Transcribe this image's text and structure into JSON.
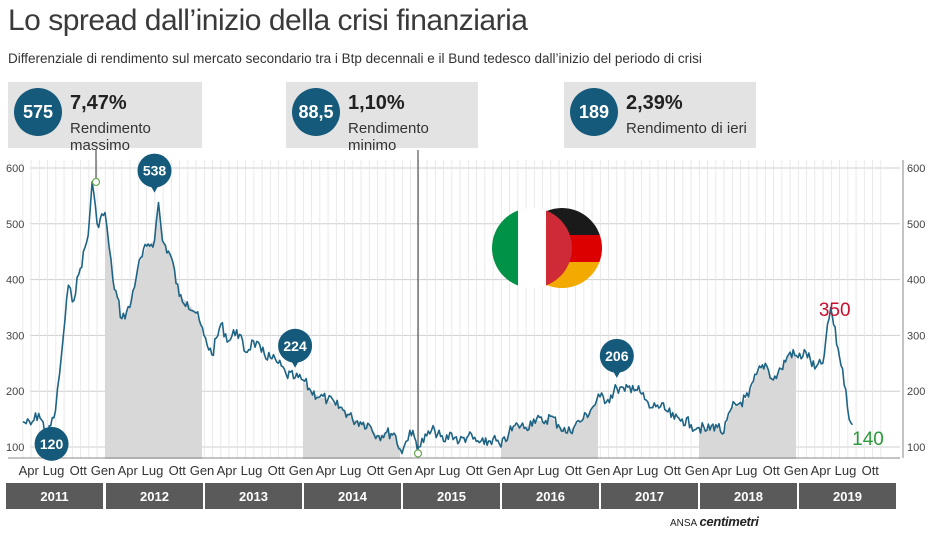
{
  "title": "Lo spread dall’inizio della crisi finanziaria",
  "subtitle": "Differenziale di rendimento sul mercato secondario tra i Btp decennali e il Bund tedesco dall’inizio del periodo di crisi",
  "callouts": [
    {
      "value": "575",
      "pct": "7,47%",
      "label": "Rendimento massimo"
    },
    {
      "value": "88,5",
      "pct": "1,10%",
      "label": "Rendimento minimo"
    },
    {
      "value": "189",
      "pct": "2,39%",
      "label": "Rendimento di ieri"
    }
  ],
  "credit": {
    "prefix": "ANSA",
    "brand": "centimetri"
  },
  "colors": {
    "line": "#1e6484",
    "badge": "#155a7a",
    "fill": "#d8d8d8",
    "year_bar": "#5a5a5a",
    "red_label": "#c8102e",
    "green_label": "#2a9a3a"
  },
  "flags_icon": "italy-germany-flags",
  "chart_data": {
    "type": "line",
    "y_ticks": [
      "600",
      "500",
      "400",
      "300",
      "200",
      "100"
    ],
    "ylim": [
      100,
      600
    ],
    "month_labels": [
      "Apr",
      "Lug",
      "Ott",
      "Gen",
      "Apr",
      "Lug",
      "Ott",
      "Gen",
      "Apr",
      "Lug",
      "Ott",
      "Gen",
      "Apr",
      "Lug",
      "Ott",
      "Gen",
      "Apr",
      "Lug",
      "Ott",
      "Gen",
      "Apr",
      "Lug",
      "Ott",
      "Gen",
      "Apr",
      "Lug",
      "Ott",
      "Gen",
      "Apr",
      "Lug",
      "Ott",
      "Gen",
      "Apr",
      "Lug",
      "Ott"
    ],
    "years": [
      "2011",
      "2012",
      "2013",
      "2014",
      "2015",
      "2016",
      "2017",
      "2018",
      "2019"
    ],
    "x_start": 2011.17,
    "x_end": 2019.85,
    "series": [
      {
        "x": [
          2011.17,
          2011.25,
          2011.33,
          2011.42,
          2011.5,
          2011.54,
          2011.58,
          2011.63,
          2011.67,
          2011.75,
          2011.83,
          2011.87,
          2011.92,
          2012.0,
          2012.04,
          2012.08,
          2012.17,
          2012.25,
          2012.33,
          2012.42,
          2012.5,
          2012.54,
          2012.58,
          2012.67,
          2012.75,
          2012.83,
          2012.92,
          2013.0,
          2013.08,
          2013.17,
          2013.25,
          2013.33,
          2013.42,
          2013.5,
          2013.58,
          2013.67,
          2013.75,
          2013.83,
          2013.92,
          2014.0,
          2014.08,
          2014.17,
          2014.25,
          2014.33,
          2014.42,
          2014.5,
          2014.58,
          2014.67,
          2014.75,
          2014.83,
          2014.92,
          2015.0,
          2015.04,
          2015.08,
          2015.17,
          2015.25,
          2015.33,
          2015.42,
          2015.5,
          2015.58,
          2015.67,
          2015.75,
          2015.83,
          2015.92,
          2016.0,
          2016.08,
          2016.17,
          2016.25,
          2016.33,
          2016.42,
          2016.5,
          2016.58,
          2016.67,
          2016.75,
          2016.83,
          2016.92,
          2017.0,
          2017.08,
          2017.17,
          2017.25,
          2017.33,
          2017.42,
          2017.5,
          2017.58,
          2017.67,
          2017.75,
          2017.83,
          2017.92,
          2018.0,
          2018.08,
          2018.17,
          2018.25,
          2018.33,
          2018.42,
          2018.5,
          2018.58,
          2018.67,
          2018.75,
          2018.83,
          2018.92,
          2019.0,
          2019.08,
          2019.17,
          2019.25,
          2019.33,
          2019.42,
          2019.45,
          2019.5,
          2019.55
        ],
        "y": [
          145,
          140,
          160,
          120,
          165,
          230,
          300,
          390,
          360,
          420,
          480,
          575,
          500,
          520,
          460,
          400,
          330,
          350,
          420,
          460,
          470,
          538,
          470,
          440,
          370,
          360,
          340,
          300,
          265,
          320,
          290,
          310,
          270,
          290,
          270,
          260,
          250,
          230,
          224,
          220,
          200,
          190,
          185,
          175,
          165,
          150,
          145,
          140,
          120,
          125,
          125,
          88.5,
          110,
          130,
          100,
          120,
          130,
          110,
          125,
          110,
          120,
          110,
          105,
          115,
          100,
          125,
          140,
          135,
          150,
          145,
          155,
          140,
          125,
          140,
          150,
          170,
          190,
          185,
          206,
          200,
          210,
          195,
          170,
          175,
          165,
          150,
          150,
          140,
          135,
          130,
          140,
          125,
          170,
          180,
          190,
          230,
          250,
          220,
          240,
          270,
          260,
          270,
          240,
          250,
          350,
          260,
          240,
          170,
          140
        ]
      }
    ],
    "markers": [
      {
        "label": "120",
        "x": 2011.42,
        "y": 120
      },
      {
        "label": "538",
        "x": 2012.5,
        "y": 538
      },
      {
        "label": "224",
        "x": 2013.92,
        "y": 224
      },
      {
        "label": "206",
        "x": 2017.17,
        "y": 206
      }
    ],
    "annotations": [
      {
        "label": "350",
        "x": 2019.33,
        "y": 350
      },
      {
        "label": "140",
        "x": 2019.55,
        "y": 140
      }
    ]
  }
}
